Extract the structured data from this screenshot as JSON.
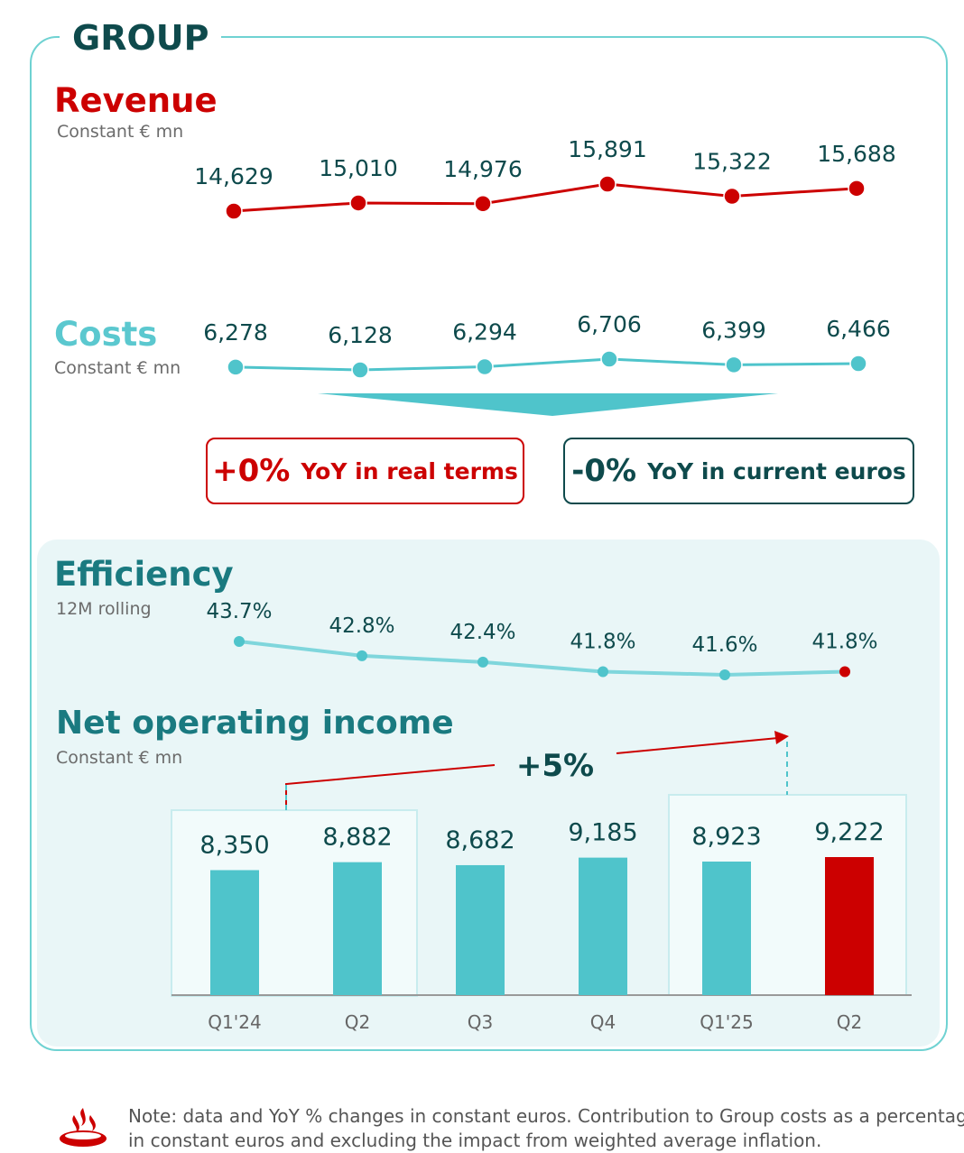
{
  "group_title": "GROUP",
  "revenue": {
    "title": "Revenue",
    "unit": "Constant € mn"
  },
  "costs": {
    "title": "Costs",
    "unit": "Constant € mn"
  },
  "efficiency": {
    "title": "Efficiency",
    "unit": "12M rolling"
  },
  "noi": {
    "title": "Net operating income",
    "unit": "Constant € mn",
    "growth_label": "+5%"
  },
  "badges": {
    "real": {
      "value": "+0%",
      "text": "YoY in real terms"
    },
    "current": {
      "value": "-0%",
      "text": "YoY in current euros"
    }
  },
  "note": {
    "line1": "Note: data and YoY % changes in constant euros. Contribution to Group costs as a percentage of",
    "line2": "in constant euros and excluding the impact from weighted average inflation."
  },
  "colors": {
    "red": "#cc0000",
    "teal": "#4fc4cb",
    "light_teal": "#7fd6dc",
    "dark": "#0e4a4c",
    "costs_title": "#5bc8cf"
  },
  "chart_data": [
    {
      "type": "line",
      "title": "Revenue",
      "unit": "Constant € mn",
      "categories": [
        "Q1'24",
        "Q2",
        "Q3",
        "Q4",
        "Q1'25",
        "Q2"
      ],
      "values": [
        14629,
        15010,
        14976,
        15891,
        15322,
        15688
      ],
      "labels": [
        "14,629",
        "15,010",
        "14,976",
        "15,891",
        "15,322",
        "15,688"
      ]
    },
    {
      "type": "line",
      "title": "Costs",
      "unit": "Constant € mn",
      "categories": [
        "Q1'24",
        "Q2",
        "Q3",
        "Q4",
        "Q1'25",
        "Q2"
      ],
      "values": [
        6278,
        6128,
        6294,
        6706,
        6399,
        6466
      ],
      "labels": [
        "6,278",
        "6,128",
        "6,294",
        "6,706",
        "6,399",
        "6,466"
      ]
    },
    {
      "type": "line",
      "title": "Efficiency",
      "unit": "12M rolling",
      "categories": [
        "Q1'24",
        "Q2",
        "Q3",
        "Q4",
        "Q1'25",
        "Q2"
      ],
      "values": [
        43.7,
        42.8,
        42.4,
        41.8,
        41.6,
        41.8
      ],
      "labels": [
        "43.7%",
        "42.8%",
        "42.4%",
        "41.8%",
        "41.6%",
        "41.8%"
      ]
    },
    {
      "type": "bar",
      "title": "Net operating income",
      "unit": "Constant € mn",
      "categories": [
        "Q1'24",
        "Q2",
        "Q3",
        "Q4",
        "Q1'25",
        "Q2"
      ],
      "values": [
        8350,
        8882,
        8682,
        9185,
        8923,
        9222
      ],
      "labels": [
        "8,350",
        "8,882",
        "8,682",
        "9,185",
        "8,923",
        "9,222"
      ],
      "ylim": [
        0,
        10000
      ],
      "annotation": "+5%"
    }
  ]
}
